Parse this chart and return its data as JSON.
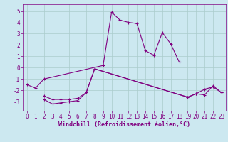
{
  "x": [
    0,
    1,
    2,
    3,
    4,
    5,
    6,
    7,
    8,
    9,
    10,
    11,
    12,
    13,
    14,
    15,
    16,
    17,
    18,
    19,
    20,
    21,
    22,
    23
  ],
  "line1_x": [
    0,
    1,
    2,
    9,
    10,
    11,
    12,
    13,
    14,
    15,
    16,
    17,
    18
  ],
  "line1_y": [
    -1.5,
    -1.8,
    -1.0,
    0.2,
    4.9,
    4.2,
    4.0,
    3.9,
    1.5,
    1.1,
    3.1,
    2.1,
    0.5
  ],
  "line2_x": [
    2,
    3,
    4,
    5,
    6,
    7,
    8,
    19,
    20,
    21,
    22,
    23
  ],
  "line2_y": [
    -2.8,
    -3.2,
    -3.1,
    -3.0,
    -2.9,
    -2.2,
    -0.1,
    -2.6,
    -2.3,
    -2.4,
    -1.6,
    -2.2
  ],
  "line3_x": [
    2,
    3,
    4,
    5,
    6,
    7,
    8,
    19,
    20,
    21,
    22,
    23
  ],
  "line3_y": [
    -2.5,
    -2.8,
    -2.8,
    -2.8,
    -2.7,
    -2.2,
    -0.1,
    -2.6,
    -2.3,
    -1.9,
    -1.7,
    -2.2
  ],
  "line_color": "#800080",
  "bg_color": "#cce8f0",
  "grid_color": "#aacccc",
  "xlabel": "Windchill (Refroidissement éolien,°C)",
  "ylim": [
    -3.8,
    5.6
  ],
  "xlim": [
    -0.5,
    23.5
  ],
  "yticks": [
    -3,
    -2,
    -1,
    0,
    1,
    2,
    3,
    4,
    5
  ],
  "xticks": [
    0,
    1,
    2,
    3,
    4,
    5,
    6,
    7,
    8,
    9,
    10,
    11,
    12,
    13,
    14,
    15,
    16,
    17,
    18,
    19,
    20,
    21,
    22,
    23
  ]
}
